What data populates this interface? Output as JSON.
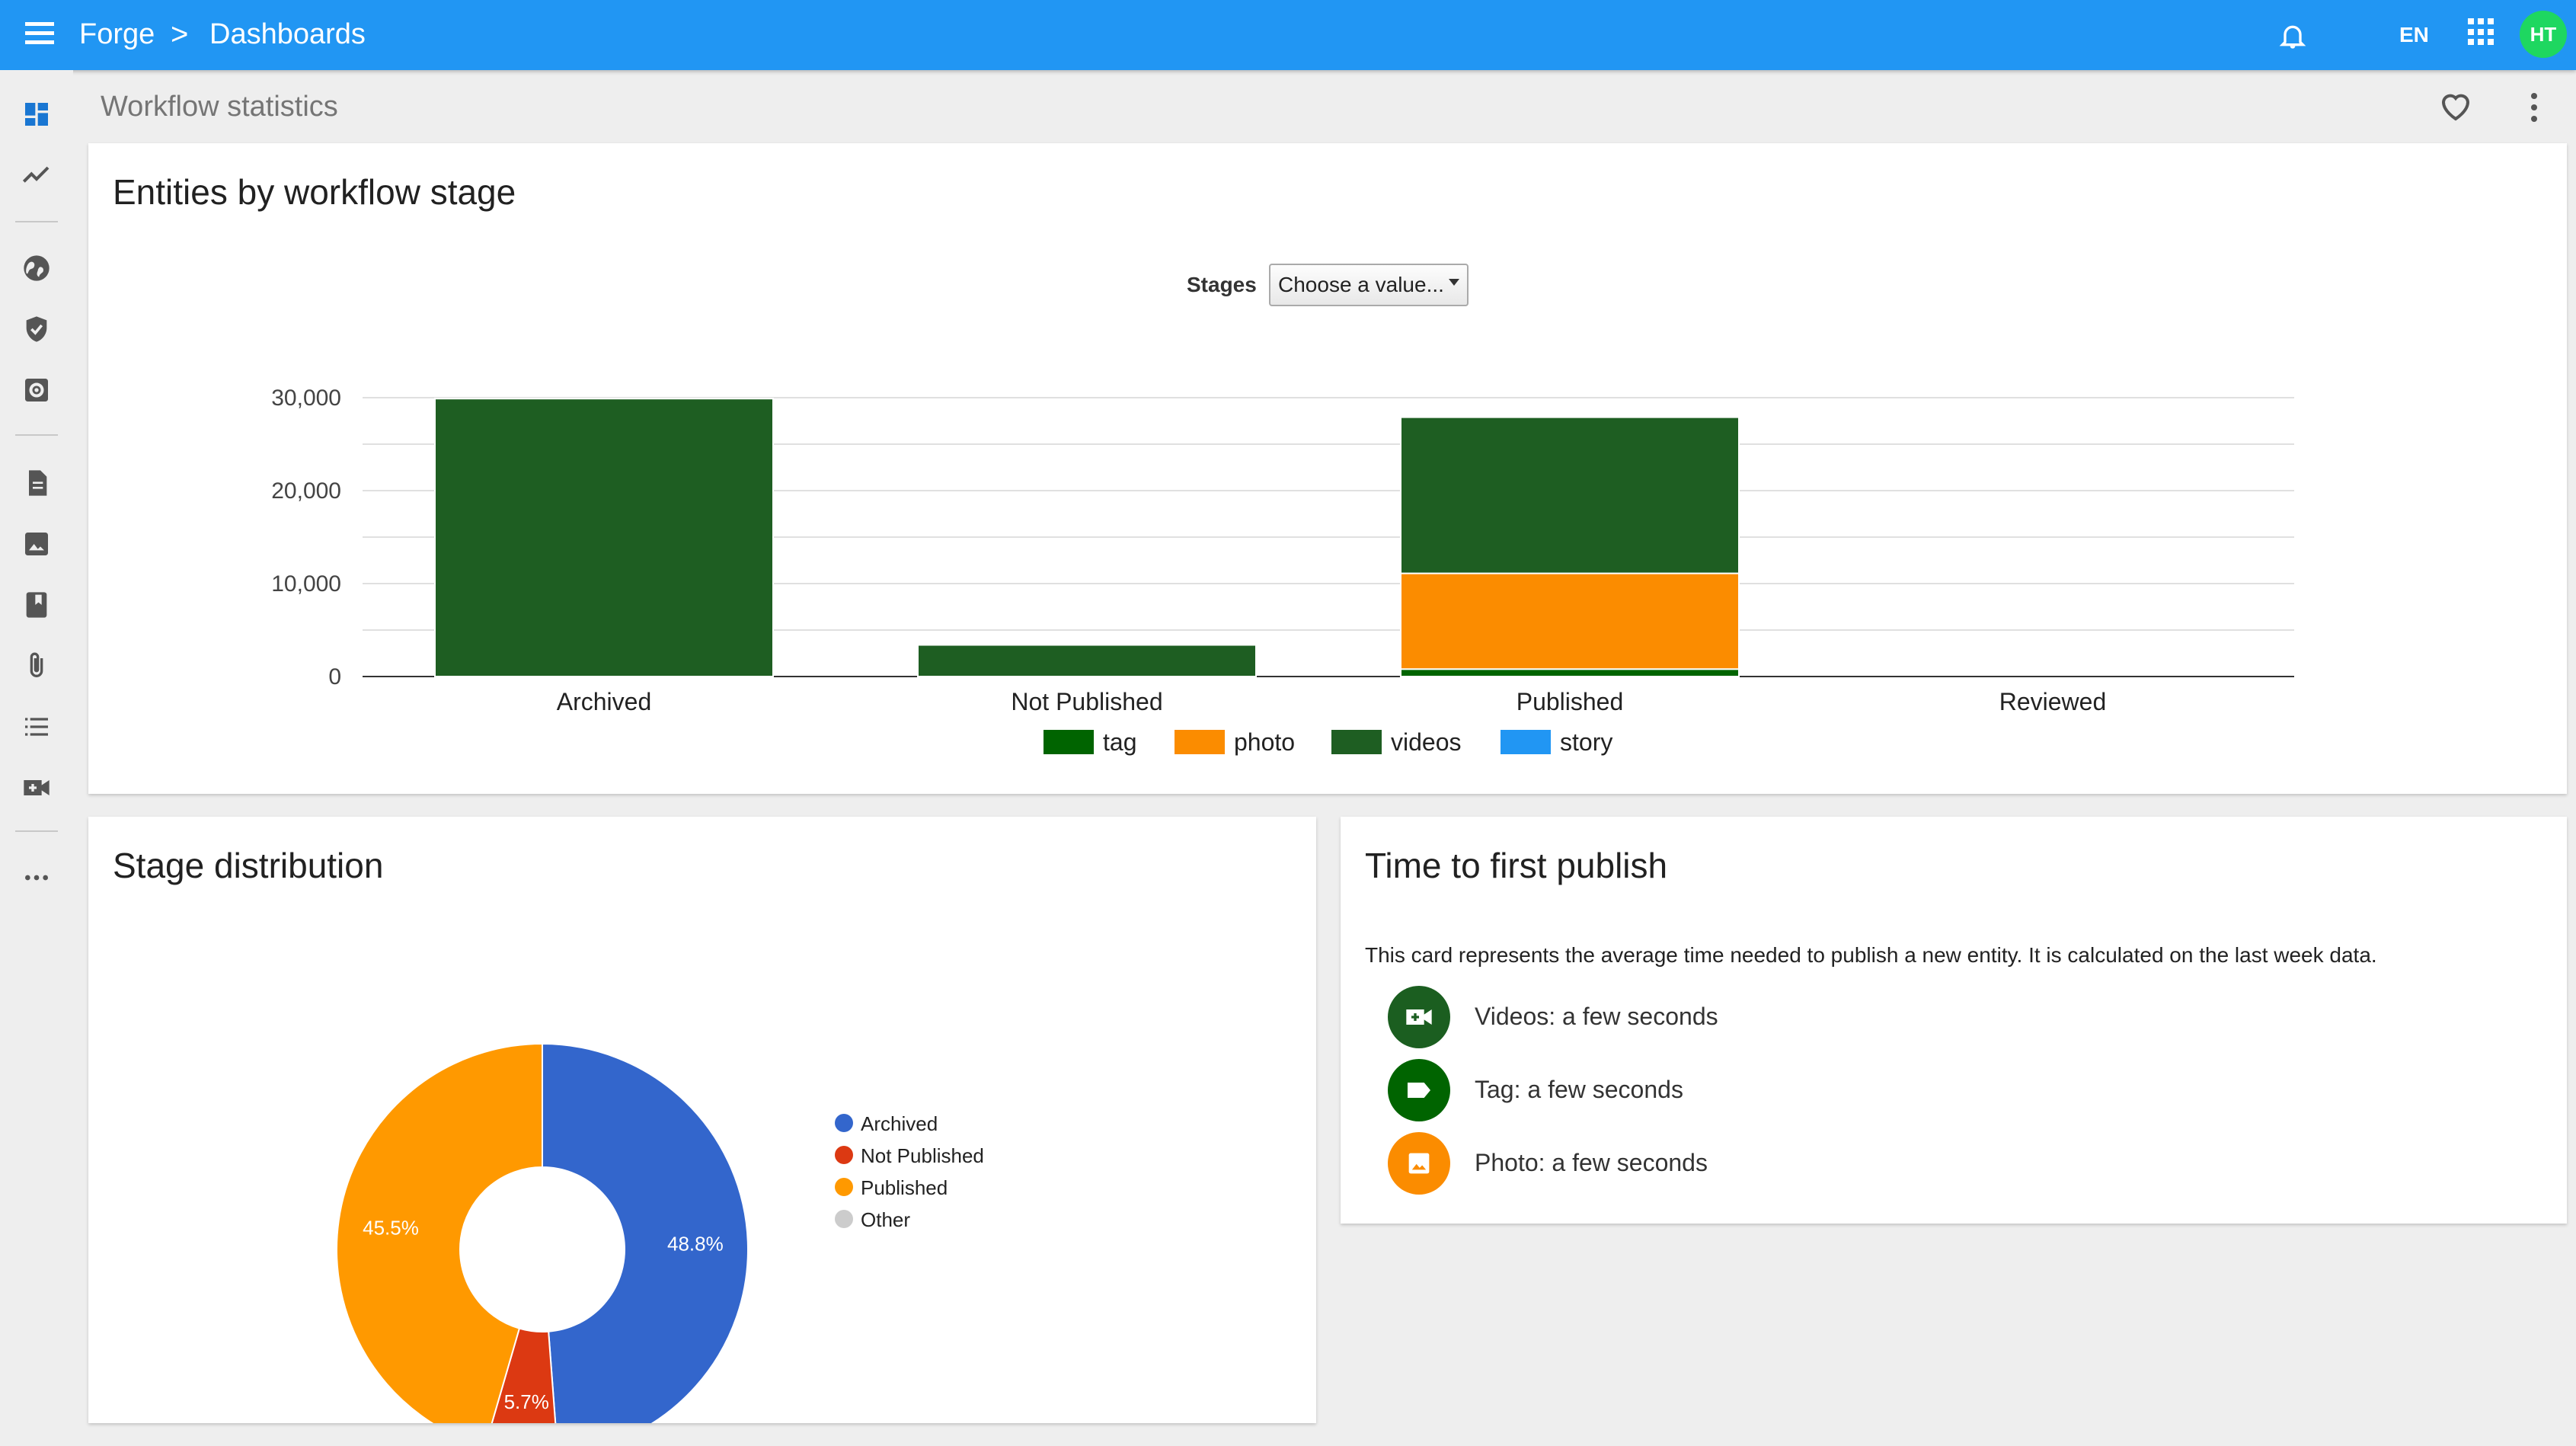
{
  "topbar": {
    "app_name": "Forge",
    "separator": ">",
    "page_name": "Dashboards",
    "language": "EN",
    "avatar_initials": "HT",
    "bar_color": "#2196f3",
    "avatar_color": "#1ed760"
  },
  "siderail": {
    "items": [
      {
        "icon": "dashboard-icon",
        "active": true
      },
      {
        "icon": "trending-icon"
      },
      {
        "icon": "globe-icon"
      },
      {
        "icon": "shield-check-icon"
      },
      {
        "icon": "settings-box-icon"
      },
      {
        "icon": "document-icon"
      },
      {
        "icon": "image-icon"
      },
      {
        "icon": "bookmark-box-icon"
      },
      {
        "icon": "attachment-icon"
      },
      {
        "icon": "list-icon"
      },
      {
        "icon": "video-add-icon"
      },
      {
        "icon": "more-horizontal-icon"
      }
    ]
  },
  "page": {
    "title": "Workflow statistics"
  },
  "bar_card": {
    "title": "Entities by workflow stage",
    "filter_label": "Stages",
    "filter_value": "Choose a value..."
  },
  "pie_card": {
    "title": "Stage distribution"
  },
  "time_card": {
    "title": "Time to first publish",
    "description": "This card represents the average time needed to publish a new entity. It is calculated on the last week data.",
    "rows": [
      {
        "icon": "video-add-icon",
        "color": "#1b5e20",
        "text": "Videos: a few seconds"
      },
      {
        "icon": "tag-icon",
        "color": "#006400",
        "text": "Tag: a few seconds"
      },
      {
        "icon": "image-icon",
        "color": "#fb8c00",
        "text": "Photo: a few seconds"
      }
    ]
  },
  "chart_data": [
    {
      "type": "bar",
      "stacked": true,
      "categories": [
        "Archived",
        "Not Published",
        "Published",
        "Reviewed"
      ],
      "series": [
        {
          "name": "tag",
          "color": "#006400",
          "values": [
            0,
            0,
            800,
            0
          ]
        },
        {
          "name": "photo",
          "color": "#fb8c00",
          "values": [
            0,
            0,
            10300,
            0
          ]
        },
        {
          "name": "videos",
          "color": "#1e5e22",
          "values": [
            29900,
            3400,
            16800,
            0
          ]
        },
        {
          "name": "story",
          "color": "#2196f3",
          "values": [
            0,
            0,
            0,
            0
          ]
        }
      ],
      "ylim": [
        0,
        30000
      ],
      "yticks": [
        0,
        10000,
        20000,
        30000
      ],
      "ytick_labels": [
        "0",
        "10,000",
        "20,000",
        "30,000"
      ],
      "legend_position": "bottom",
      "grid": true
    },
    {
      "type": "pie",
      "donut": true,
      "slices": [
        {
          "label": "Archived",
          "value": 48.8,
          "display": "48.8%",
          "color": "#3366cc"
        },
        {
          "label": "Not Published",
          "value": 5.7,
          "display": "5.7%",
          "color": "#dc3912"
        },
        {
          "label": "Published",
          "value": 45.5,
          "display": "45.5%",
          "color": "#ff9900"
        },
        {
          "label": "Other",
          "value": 0,
          "display": "",
          "color": "#cccccc"
        }
      ],
      "legend_position": "right"
    }
  ]
}
